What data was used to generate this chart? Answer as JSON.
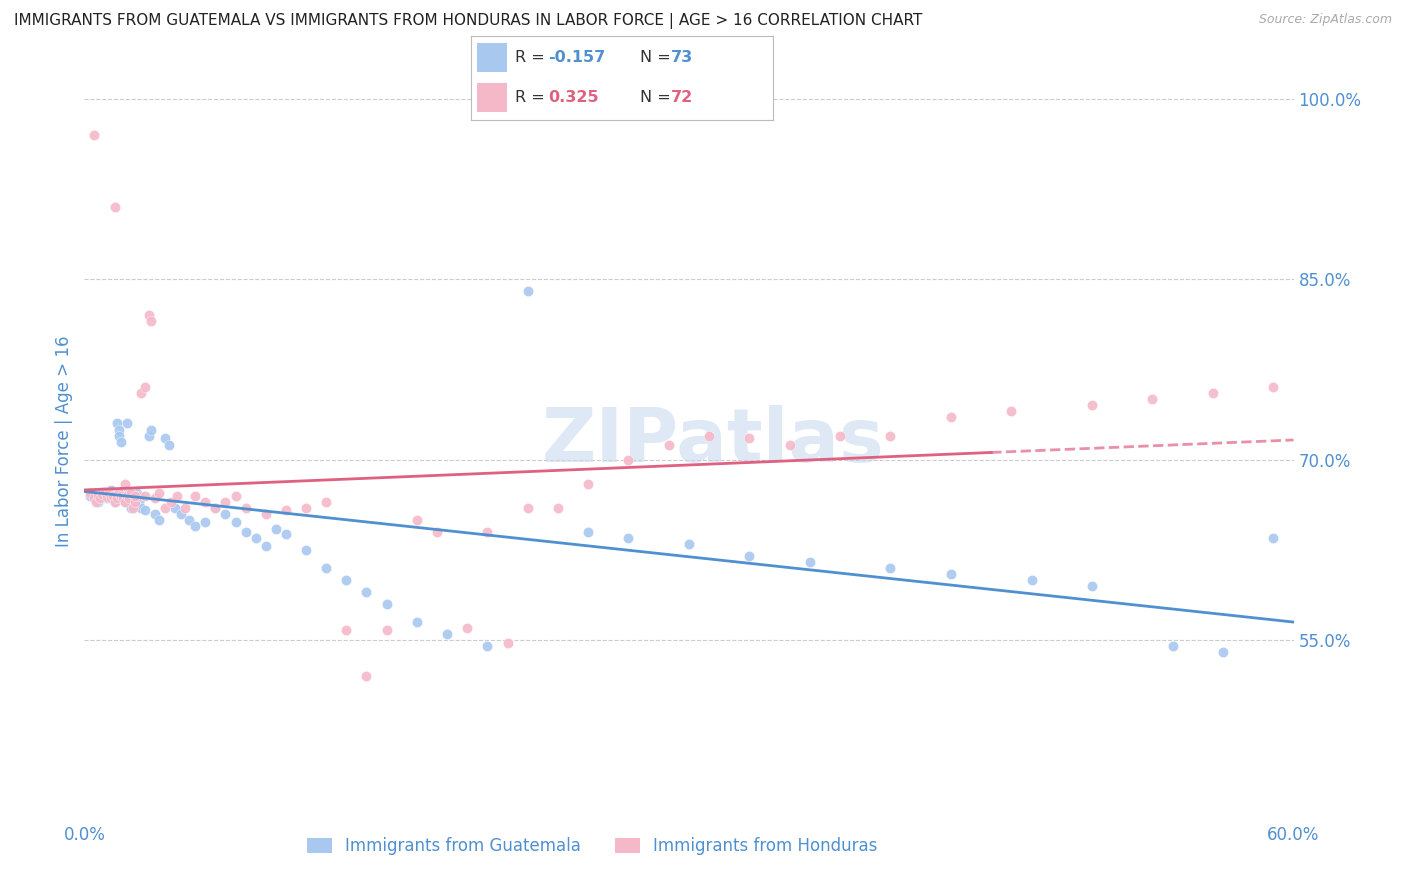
{
  "title": "IMMIGRANTS FROM GUATEMALA VS IMMIGRANTS FROM HONDURAS IN LABOR FORCE | AGE > 16 CORRELATION CHART",
  "source": "Source: ZipAtlas.com",
  "ylabel": "In Labor Force | Age > 16",
  "xlim": [
    0.0,
    0.6
  ],
  "ylim": [
    0.4,
    1.03
  ],
  "xticks": [
    0.0,
    0.15,
    0.3,
    0.45,
    0.6
  ],
  "xticklabels": [
    "0.0%",
    "",
    "",
    "",
    "60.0%"
  ],
  "yticks_right": [
    0.55,
    0.7,
    0.85,
    1.0
  ],
  "ytick_labels_right": [
    "55.0%",
    "70.0%",
    "85.0%",
    "100.0%"
  ],
  "watermark": "ZIPatlas",
  "blue_color": "#a8c8f0",
  "pink_color": "#f5b8c8",
  "blue_line_color": "#5090d0",
  "pink_line_color": "#e06080",
  "background_color": "#ffffff",
  "grid_color": "#cccccc",
  "title_color": "#222222",
  "axis_label_color": "#5090d0",
  "legend_R_color": "#5090d0",
  "legend_box_border": "#bbbbbb",
  "guatemala_x": [
    0.003,
    0.005,
    0.006,
    0.007,
    0.008,
    0.009,
    0.01,
    0.011,
    0.012,
    0.013,
    0.014,
    0.015,
    0.015,
    0.016,
    0.017,
    0.017,
    0.018,
    0.018,
    0.019,
    0.019,
    0.02,
    0.02,
    0.021,
    0.021,
    0.022,
    0.022,
    0.023,
    0.024,
    0.025,
    0.026,
    0.027,
    0.028,
    0.03,
    0.032,
    0.033,
    0.035,
    0.037,
    0.04,
    0.042,
    0.045,
    0.048,
    0.052,
    0.055,
    0.06,
    0.065,
    0.07,
    0.075,
    0.08,
    0.085,
    0.09,
    0.095,
    0.1,
    0.11,
    0.12,
    0.13,
    0.14,
    0.15,
    0.165,
    0.18,
    0.2,
    0.22,
    0.25,
    0.27,
    0.3,
    0.33,
    0.36,
    0.4,
    0.43,
    0.47,
    0.5,
    0.54,
    0.565,
    0.59
  ],
  "guatemala_y": [
    0.67,
    0.668,
    0.672,
    0.665,
    0.67,
    0.673,
    0.671,
    0.668,
    0.672,
    0.675,
    0.67,
    0.669,
    0.665,
    0.73,
    0.725,
    0.72,
    0.715,
    0.668,
    0.672,
    0.67,
    0.668,
    0.665,
    0.73,
    0.67,
    0.668,
    0.672,
    0.66,
    0.67,
    0.668,
    0.672,
    0.665,
    0.66,
    0.658,
    0.72,
    0.725,
    0.655,
    0.65,
    0.718,
    0.712,
    0.66,
    0.655,
    0.65,
    0.645,
    0.648,
    0.66,
    0.655,
    0.648,
    0.64,
    0.635,
    0.628,
    0.642,
    0.638,
    0.625,
    0.61,
    0.6,
    0.59,
    0.58,
    0.565,
    0.555,
    0.545,
    0.84,
    0.64,
    0.635,
    0.63,
    0.62,
    0.615,
    0.61,
    0.605,
    0.6,
    0.595,
    0.545,
    0.54,
    0.635
  ],
  "honduras_x": [
    0.003,
    0.005,
    0.006,
    0.007,
    0.008,
    0.009,
    0.01,
    0.011,
    0.012,
    0.013,
    0.014,
    0.015,
    0.016,
    0.017,
    0.018,
    0.019,
    0.02,
    0.021,
    0.022,
    0.023,
    0.024,
    0.025,
    0.027,
    0.028,
    0.03,
    0.032,
    0.033,
    0.035,
    0.037,
    0.04,
    0.043,
    0.046,
    0.05,
    0.055,
    0.06,
    0.065,
    0.07,
    0.075,
    0.08,
    0.09,
    0.1,
    0.11,
    0.12,
    0.13,
    0.14,
    0.15,
    0.165,
    0.175,
    0.19,
    0.2,
    0.21,
    0.22,
    0.235,
    0.25,
    0.27,
    0.29,
    0.31,
    0.33,
    0.35,
    0.375,
    0.4,
    0.43,
    0.46,
    0.5,
    0.53,
    0.56,
    0.59,
    0.015,
    0.005,
    0.02,
    0.025,
    0.03
  ],
  "honduras_y": [
    0.672,
    0.668,
    0.665,
    0.67,
    0.668,
    0.671,
    0.673,
    0.669,
    0.672,
    0.668,
    0.67,
    0.665,
    0.668,
    0.672,
    0.67,
    0.668,
    0.665,
    0.67,
    0.668,
    0.672,
    0.66,
    0.665,
    0.67,
    0.755,
    0.76,
    0.82,
    0.815,
    0.668,
    0.672,
    0.66,
    0.665,
    0.67,
    0.66,
    0.67,
    0.665,
    0.66,
    0.665,
    0.67,
    0.66,
    0.655,
    0.658,
    0.66,
    0.665,
    0.558,
    0.52,
    0.558,
    0.65,
    0.64,
    0.56,
    0.64,
    0.548,
    0.66,
    0.66,
    0.68,
    0.7,
    0.712,
    0.72,
    0.718,
    0.712,
    0.72,
    0.72,
    0.735,
    0.74,
    0.745,
    0.75,
    0.755,
    0.76,
    0.91,
    0.97,
    0.68,
    0.67,
    0.67
  ]
}
